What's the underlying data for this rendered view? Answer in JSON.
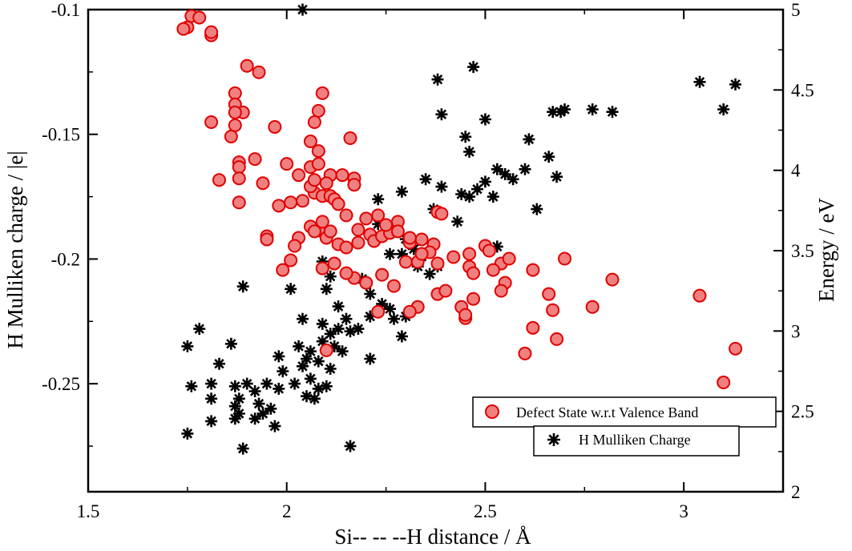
{
  "chart_data": {
    "type": "scatter",
    "xlabel": "Si-- -- --H distance / Å",
    "ylabel": "H Mulliken charge / |e|",
    "y2label": "Energy / eV",
    "xlim": [
      1.5,
      3.25
    ],
    "ylim": [
      -0.2933,
      -0.1
    ],
    "y2lim": [
      2,
      5
    ],
    "x_ticks": [
      "1.5",
      "2",
      "2.5",
      "3"
    ],
    "x_tick_values": [
      1.5,
      2,
      2.5,
      3
    ],
    "y_ticks": [
      "-0.1",
      "-0.15",
      "-0.2",
      "-0.25"
    ],
    "y_tick_values": [
      -0.1,
      -0.15,
      -0.2,
      -0.25
    ],
    "y2_ticks": [
      "2",
      "2.5",
      "3",
      "3.5",
      "4",
      "4.5",
      "5"
    ],
    "y2_tick_values": [
      2,
      2.5,
      3,
      3.5,
      4,
      4.5,
      5
    ],
    "legend_position": "bottom-right",
    "grid": false,
    "series": [
      {
        "name": "Defect State w.r.t Valence Band",
        "axis": "right",
        "marker": "circle",
        "fill_color": "#f08080",
        "edge_color": "#e00000",
        "points": [
          [
            1.75,
            4.89
          ],
          [
            1.76,
            4.96
          ],
          [
            1.78,
            4.95
          ],
          [
            1.74,
            4.88
          ],
          [
            1.81,
            4.84
          ],
          [
            1.81,
            4.86
          ],
          [
            1.9,
            4.65
          ],
          [
            1.93,
            4.61
          ],
          [
            1.87,
            4.48
          ],
          [
            1.87,
            4.41
          ],
          [
            1.89,
            4.36
          ],
          [
            1.87,
            4.36
          ],
          [
            1.81,
            4.3
          ],
          [
            1.87,
            4.28
          ],
          [
            1.86,
            4.21
          ],
          [
            1.92,
            4.07
          ],
          [
            1.97,
            4.27
          ],
          [
            2.09,
            4.48
          ],
          [
            2.08,
            4.37
          ],
          [
            2.07,
            4.3
          ],
          [
            2.16,
            4.2
          ],
          [
            2.08,
            4.12
          ],
          [
            2.06,
            4.18
          ],
          [
            1.88,
            4.05
          ],
          [
            1.88,
            4.02
          ],
          [
            1.83,
            3.94
          ],
          [
            1.88,
            3.95
          ],
          [
            1.94,
            3.92
          ],
          [
            2.0,
            4.04
          ],
          [
            2.03,
            3.97
          ],
          [
            2.06,
            4.02
          ],
          [
            2.08,
            4.04
          ],
          [
            2.11,
            3.97
          ],
          [
            2.14,
            3.97
          ],
          [
            2.17,
            3.95
          ],
          [
            2.17,
            3.91
          ],
          [
            1.88,
            3.8
          ],
          [
            1.98,
            3.78
          ],
          [
            2.01,
            3.8
          ],
          [
            2.04,
            3.81
          ],
          [
            2.07,
            3.86
          ],
          [
            2.09,
            3.84
          ],
          [
            2.11,
            3.84
          ],
          [
            2.12,
            3.82
          ],
          [
            2.15,
            3.72
          ],
          [
            2.06,
            3.9
          ],
          [
            2.07,
            3.94
          ],
          [
            2.1,
            3.92
          ],
          [
            2.13,
            3.79
          ],
          [
            1.95,
            3.59
          ],
          [
            1.95,
            3.57
          ],
          [
            2.03,
            3.58
          ],
          [
            2.06,
            3.65
          ],
          [
            2.09,
            3.62
          ],
          [
            2.1,
            3.58
          ],
          [
            2.13,
            3.54
          ],
          [
            2.15,
            3.52
          ],
          [
            2.18,
            3.55
          ],
          [
            2.21,
            3.6
          ],
          [
            2.22,
            3.56
          ],
          [
            2.24,
            3.59
          ],
          [
            2.26,
            3.61
          ],
          [
            2.28,
            3.68
          ],
          [
            2.31,
            3.55
          ],
          [
            2.34,
            3.57
          ],
          [
            2.37,
            3.54
          ],
          [
            2.38,
            3.74
          ],
          [
            2.39,
            3.73
          ],
          [
            2.36,
            3.49
          ],
          [
            2.3,
            3.43
          ],
          [
            2.33,
            3.43
          ],
          [
            2.38,
            3.42
          ],
          [
            2.42,
            3.46
          ],
          [
            2.46,
            3.4
          ],
          [
            2.5,
            3.53
          ],
          [
            2.51,
            3.5
          ],
          [
            2.54,
            3.42
          ],
          [
            2.56,
            3.45
          ],
          [
            2.62,
            3.38
          ],
          [
            2.7,
            3.45
          ],
          [
            2.46,
            3.48
          ],
          [
            2.47,
            3.36
          ],
          [
            2.52,
            3.38
          ],
          [
            2.55,
            3.3
          ],
          [
            2.54,
            3.25
          ],
          [
            2.47,
            3.2
          ],
          [
            2.44,
            3.15
          ],
          [
            2.45,
            3.08
          ],
          [
            2.45,
            3.1
          ],
          [
            2.38,
            3.23
          ],
          [
            2.4,
            3.25
          ],
          [
            2.33,
            3.15
          ],
          [
            2.31,
            3.12
          ],
          [
            2.27,
            3.28
          ],
          [
            2.24,
            3.35
          ],
          [
            2.23,
            3.12
          ],
          [
            2.2,
            3.3
          ],
          [
            2.17,
            3.33
          ],
          [
            2.15,
            3.36
          ],
          [
            2.12,
            3.42
          ],
          [
            2.09,
            3.39
          ],
          [
            2.01,
            3.44
          ],
          [
            1.99,
            3.38
          ],
          [
            2.02,
            3.53
          ],
          [
            2.07,
            3.62
          ],
          [
            2.09,
            3.68
          ],
          [
            2.11,
            3.62
          ],
          [
            2.18,
            3.63
          ],
          [
            2.2,
            3.7
          ],
          [
            2.23,
            3.72
          ],
          [
            2.25,
            3.66
          ],
          [
            2.28,
            3.62
          ],
          [
            2.31,
            3.58
          ],
          [
            2.34,
            3.48
          ],
          [
            2.1,
            2.88
          ],
          [
            2.66,
            3.23
          ],
          [
            2.67,
            3.13
          ],
          [
            2.77,
            3.15
          ],
          [
            2.82,
            3.32
          ],
          [
            2.62,
            3.02
          ],
          [
            2.6,
            2.86
          ],
          [
            2.68,
            2.95
          ],
          [
            3.04,
            3.22
          ],
          [
            3.13,
            2.89
          ],
          [
            3.1,
            2.68
          ]
        ]
      },
      {
        "name": "H Mulliken Charge",
        "axis": "left",
        "marker": "star",
        "fill_color": "#000000",
        "edge_color": "#000000",
        "points": [
          [
            2.04,
            -0.1
          ],
          [
            2.47,
            -0.123
          ],
          [
            2.38,
            -0.128
          ],
          [
            2.39,
            -0.142
          ],
          [
            2.5,
            -0.144
          ],
          [
            2.45,
            -0.151
          ],
          [
            2.46,
            -0.157
          ],
          [
            2.61,
            -0.152
          ],
          [
            2.67,
            -0.141
          ],
          [
            2.69,
            -0.141
          ],
          [
            2.7,
            -0.14
          ],
          [
            2.77,
            -0.14
          ],
          [
            2.82,
            -0.141
          ],
          [
            3.04,
            -0.129
          ],
          [
            3.1,
            -0.14
          ],
          [
            3.13,
            -0.13
          ],
          [
            2.66,
            -0.159
          ],
          [
            2.6,
            -0.164
          ],
          [
            2.53,
            -0.164
          ],
          [
            2.55,
            -0.166
          ],
          [
            2.57,
            -0.168
          ],
          [
            2.68,
            -0.167
          ],
          [
            2.5,
            -0.169
          ],
          [
            2.48,
            -0.172
          ],
          [
            2.35,
            -0.168
          ],
          [
            2.29,
            -0.173
          ],
          [
            2.39,
            -0.171
          ],
          [
            2.52,
            -0.175
          ],
          [
            2.46,
            -0.175
          ],
          [
            2.44,
            -0.174
          ],
          [
            2.63,
            -0.18
          ],
          [
            2.37,
            -0.18
          ],
          [
            2.43,
            -0.185
          ],
          [
            2.23,
            -0.176
          ],
          [
            2.23,
            -0.186
          ],
          [
            2.25,
            -0.189
          ],
          [
            2.3,
            -0.192
          ],
          [
            2.32,
            -0.196
          ],
          [
            2.34,
            -0.199
          ],
          [
            2.26,
            -0.198
          ],
          [
            2.29,
            -0.198
          ],
          [
            2.33,
            -0.203
          ],
          [
            2.36,
            -0.206
          ],
          [
            2.38,
            -0.203
          ],
          [
            2.53,
            -0.195
          ],
          [
            2.09,
            -0.201
          ],
          [
            2.11,
            -0.207
          ],
          [
            2.1,
            -0.212
          ],
          [
            2.19,
            -0.208
          ],
          [
            2.21,
            -0.214
          ],
          [
            2.24,
            -0.218
          ],
          [
            2.27,
            -0.224
          ],
          [
            2.29,
            -0.231
          ],
          [
            2.3,
            -0.223
          ],
          [
            2.26,
            -0.22
          ],
          [
            2.21,
            -0.223
          ],
          [
            2.16,
            -0.229
          ],
          [
            2.13,
            -0.228
          ],
          [
            2.11,
            -0.23
          ],
          [
            2.09,
            -0.233
          ],
          [
            2.06,
            -0.237
          ],
          [
            2.03,
            -0.235
          ],
          [
            2.05,
            -0.24
          ],
          [
            2.04,
            -0.243
          ],
          [
            2.08,
            -0.241
          ],
          [
            2.11,
            -0.244
          ],
          [
            2.06,
            -0.248
          ],
          [
            2.08,
            -0.252
          ],
          [
            2.1,
            -0.251
          ],
          [
            2.05,
            -0.255
          ],
          [
            2.07,
            -0.256
          ],
          [
            2.02,
            -0.25
          ],
          [
            1.99,
            -0.245
          ],
          [
            1.98,
            -0.239
          ],
          [
            2.01,
            -0.212
          ],
          [
            2.04,
            -0.224
          ],
          [
            1.89,
            -0.211
          ],
          [
            1.78,
            -0.228
          ],
          [
            1.86,
            -0.234
          ],
          [
            1.75,
            -0.235
          ],
          [
            1.83,
            -0.242
          ],
          [
            1.76,
            -0.251
          ],
          [
            1.81,
            -0.25
          ],
          [
            1.81,
            -0.256
          ],
          [
            1.87,
            -0.251
          ],
          [
            1.88,
            -0.256
          ],
          [
            1.9,
            -0.25
          ],
          [
            1.92,
            -0.253
          ],
          [
            1.95,
            -0.25
          ],
          [
            1.98,
            -0.252
          ],
          [
            1.87,
            -0.259
          ],
          [
            1.88,
            -0.262
          ],
          [
            1.93,
            -0.258
          ],
          [
            1.94,
            -0.262
          ],
          [
            1.96,
            -0.26
          ],
          [
            1.81,
            -0.265
          ],
          [
            1.87,
            -0.264
          ],
          [
            1.92,
            -0.264
          ],
          [
            1.97,
            -0.267
          ],
          [
            1.75,
            -0.27
          ],
          [
            1.89,
            -0.276
          ],
          [
            2.16,
            -0.275
          ],
          [
            2.21,
            -0.24
          ],
          [
            2.18,
            -0.228
          ],
          [
            2.15,
            -0.224
          ],
          [
            2.13,
            -0.219
          ],
          [
            2.12,
            -0.235
          ],
          [
            2.14,
            -0.237
          ],
          [
            2.09,
            -0.226
          ]
        ]
      }
    ]
  },
  "legend": {
    "items": [
      {
        "label": "Defect State w.r.t Valence Band"
      },
      {
        "label": "H Mulliken Charge"
      }
    ]
  }
}
